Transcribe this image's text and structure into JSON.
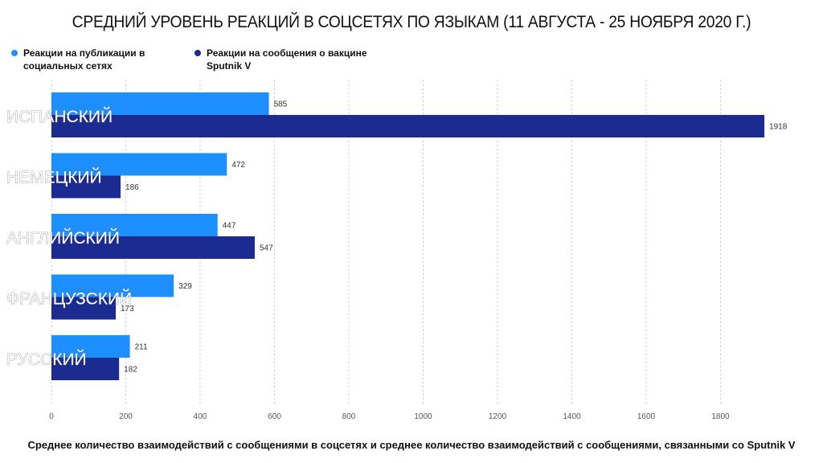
{
  "title": "СРЕДНИЙ УРОВЕНЬ РЕАКЦИЙ В СОЦСЕТЯХ ПО ЯЗЫКАМ (11 АВГУСТА - 25 НОЯБРЯ 2020 Г.)",
  "footer": "Среднее количество взаимодействий с сообщениями в соцсетях и среднее количество взаимодействий с сообщениями, связанными со Sputnik V",
  "colors": {
    "series1": "#1e8fff",
    "series2": "#1b2b8f",
    "grid": "#c8c8c8"
  },
  "chart_data": {
    "type": "bar",
    "orientation": "horizontal",
    "title": "СРЕДНИЙ УРОВЕНЬ РЕАКЦИЙ В СОЦСЕТЯХ ПО ЯЗЫКАМ (11 АВГУСТА - 25 НОЯБРЯ 2020 Г.)",
    "categories": [
      "ИСПАНСКИЙ",
      "НЕМЕЦКИЙ",
      "АНГЛИЙСКИЙ",
      "ФРАНЦУЗСКИЙ",
      "РУССКИЙ"
    ],
    "series": [
      {
        "name": "Реакции на публикации в социальных сетях",
        "values": [
          585,
          472,
          447,
          329,
          211
        ]
      },
      {
        "name": "Реакции на сообщения о вакцине Sputnik V",
        "values": [
          1918,
          186,
          547,
          173,
          182
        ]
      }
    ],
    "xlim": [
      0,
      1950
    ],
    "xticks": [
      0,
      200,
      400,
      600,
      800,
      1000,
      1200,
      1400,
      1600,
      1800
    ],
    "grid": "vertical dashed",
    "legend_position": "top-left",
    "xlabel": "",
    "ylabel": ""
  }
}
